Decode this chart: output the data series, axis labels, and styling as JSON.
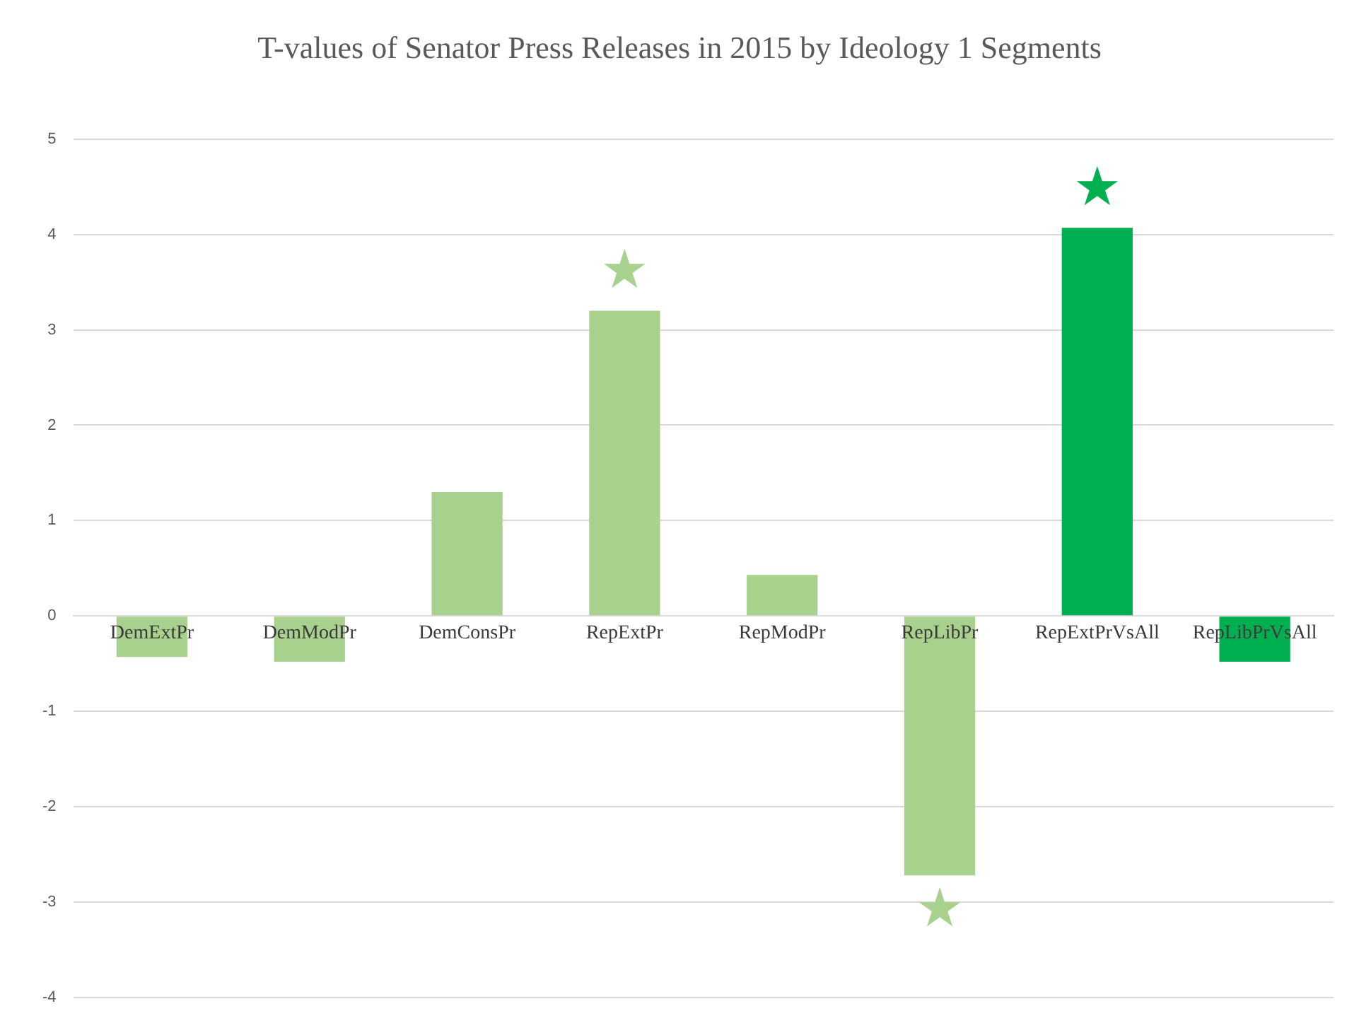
{
  "chart_data": {
    "type": "bar",
    "title": "T-values of Senator Press Releases in 2015 by Ideology 1 Segments",
    "categories": [
      "DemExtPr",
      "DemModPr",
      "DemConsPr",
      "RepExtPr",
      "RepModPr",
      "RepLibPr",
      "RepExtPrVsAll",
      "RepLibPrVsAll"
    ],
    "values": [
      -0.43,
      -0.48,
      1.3,
      3.2,
      0.43,
      -2.72,
      4.07,
      -0.48
    ],
    "colors": [
      "#a9d18e",
      "#a9d18e",
      "#a9d18e",
      "#a9d18e",
      "#a9d18e",
      "#a9d18e",
      "#00b050",
      "#00b050"
    ],
    "ylim": [
      -4,
      5
    ],
    "yticks": [
      -4,
      -3,
      -2,
      -1,
      0,
      1,
      2,
      3,
      4,
      5
    ],
    "grid": "y",
    "legend": false,
    "annotations": [
      {
        "text": "★",
        "x": "RepExtPr",
        "y": 3.2
      },
      {
        "text": "★",
        "x": "RepLibPr",
        "y": -2.72
      },
      {
        "text": "★",
        "x": "RepExtPrVsAll",
        "y": 4.07
      }
    ]
  }
}
